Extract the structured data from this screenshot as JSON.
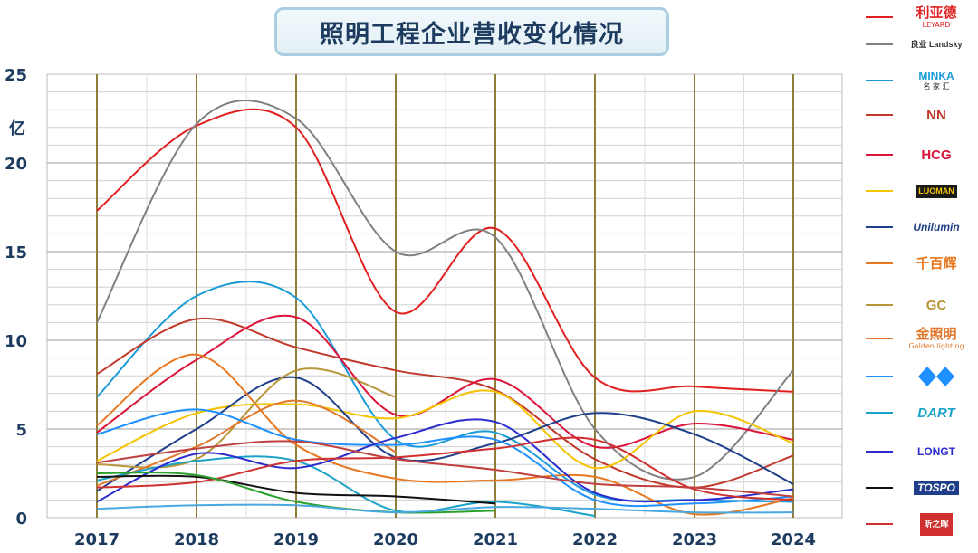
{
  "chart_data": {
    "type": "line",
    "title": "照明工程企业营收变化情况",
    "ylabel": "亿",
    "x": [
      "2017",
      "2018",
      "2019",
      "2020",
      "2021",
      "2022",
      "2023",
      "2024"
    ],
    "ylim": [
      0,
      25
    ],
    "yticks": [
      0,
      5,
      10,
      15,
      20,
      25
    ],
    "grid": true,
    "legend": "right",
    "series": [
      {
        "name": "利亚德",
        "color": "#e02020",
        "values": [
          17.3,
          22.1,
          22.0,
          11.6,
          16.3,
          7.9,
          7.4,
          7.1
        ]
      },
      {
        "name": "良业 Landsky",
        "color": "#808080",
        "values": [
          11.0,
          22.2,
          22.5,
          15.0,
          15.8,
          5.0,
          2.3,
          8.3
        ]
      },
      {
        "name": "MINKA 名家汇",
        "color": "#1a9bd8",
        "values": [
          6.8,
          12.5,
          12.4,
          4.4,
          4.8,
          1.3,
          1.0,
          0.9
        ]
      },
      {
        "name": "NN",
        "color": "#c0392b",
        "values": [
          8.1,
          11.2,
          9.6,
          8.3,
          7.2,
          3.3,
          1.7,
          3.5
        ]
      },
      {
        "name": "HCG",
        "color": "#dc143c",
        "values": [
          4.8,
          8.9,
          11.3,
          5.8,
          7.8,
          4.0,
          5.3,
          4.4
        ]
      },
      {
        "name": "LUOMAN",
        "color": "#f5c400",
        "values": [
          3.2,
          5.9,
          6.4,
          5.6,
          7.1,
          2.8,
          6.0,
          4.2
        ]
      },
      {
        "name": "Unilumin",
        "color": "#1f3f8a",
        "values": [
          1.5,
          5.0,
          7.9,
          3.4,
          4.2,
          5.9,
          4.7,
          1.9
        ]
      },
      {
        "name": "千百辉",
        "color": "#e87820",
        "values": [
          5.2,
          9.2,
          4.1,
          2.2,
          2.1,
          2.3,
          0.2,
          1.1
        ]
      },
      {
        "name": "GC",
        "color": "#b8963a",
        "values": [
          3.0,
          3.3,
          8.3,
          6.8,
          null,
          null,
          null,
          null
        ]
      },
      {
        "name": "金照明 Golden lighting",
        "color": "#e07a30",
        "values": [
          1.8,
          4.0,
          6.6,
          3.7,
          null,
          null,
          null,
          null
        ]
      },
      {
        "name": "蓝色标志",
        "color": "#1e90ff",
        "values": [
          4.7,
          6.1,
          4.4,
          4.1,
          4.4,
          1.0,
          0.8,
          1.2
        ]
      },
      {
        "name": "DART",
        "color": "#1aa3c8",
        "values": [
          2.1,
          3.2,
          3.2,
          0.4,
          0.9,
          0.1,
          null,
          null
        ]
      },
      {
        "name": "LONGT",
        "color": "#2b2bd0",
        "values": [
          0.9,
          3.6,
          2.8,
          4.5,
          5.4,
          1.4,
          1.0,
          1.6
        ]
      },
      {
        "name": "TOSPO",
        "color": "#111111",
        "values": [
          2.3,
          2.3,
          1.4,
          1.2,
          0.8,
          null,
          null,
          null
        ]
      },
      {
        "name": "昕之晖",
        "color": "#d03030",
        "values": [
          1.7,
          2.0,
          3.2,
          3.4,
          3.9,
          4.4,
          1.6,
          1.0
        ]
      },
      {
        "name": "",
        "color": "#2ca02c",
        "values": [
          2.5,
          2.4,
          0.9,
          0.3,
          0.4,
          null,
          null,
          null
        ]
      },
      {
        "name": "",
        "color": "#4aa8e0",
        "values": [
          0.5,
          0.7,
          0.7,
          0.3,
          0.6,
          0.5,
          0.3,
          0.3
        ]
      },
      {
        "name": "",
        "color": "#c04040",
        "values": [
          3.1,
          3.9,
          4.3,
          3.3,
          2.7,
          1.9,
          1.7,
          1.2
        ]
      }
    ]
  },
  "legend_logos": [
    {
      "text": "利亚德",
      "sub": "LEYARD",
      "color": "#e02020"
    },
    {
      "text": "良业 Landsky",
      "sub": "",
      "color": "#333333"
    },
    {
      "text": "MINKA",
      "sub": "名 家 汇",
      "color": "#1a9bd8"
    },
    {
      "text": "NN",
      "sub": "",
      "color": "#c0392b"
    },
    {
      "text": "HCG",
      "sub": "",
      "color": "#dc143c"
    },
    {
      "text": "LUOMAN",
      "sub": "",
      "color": "#e6b800"
    },
    {
      "text": "Unilumin",
      "sub": "",
      "color": "#1f3f8a"
    },
    {
      "text": "千百辉",
      "sub": "",
      "color": "#e87820"
    },
    {
      "text": "GC",
      "sub": "",
      "color": "#b8963a"
    },
    {
      "text": "金照明",
      "sub": "Golden lighting",
      "color": "#e07a30"
    },
    {
      "text": "",
      "sub": "",
      "color": "#1e90ff"
    },
    {
      "text": "DART",
      "sub": "",
      "color": "#1aa3c8"
    },
    {
      "text": "LONGT",
      "sub": "",
      "color": "#2b2bd0"
    },
    {
      "text": "TOSPO",
      "sub": "",
      "color": "#1f3f8a"
    },
    {
      "text": "昕之晖",
      "sub": "",
      "color": "#d03030"
    }
  ]
}
